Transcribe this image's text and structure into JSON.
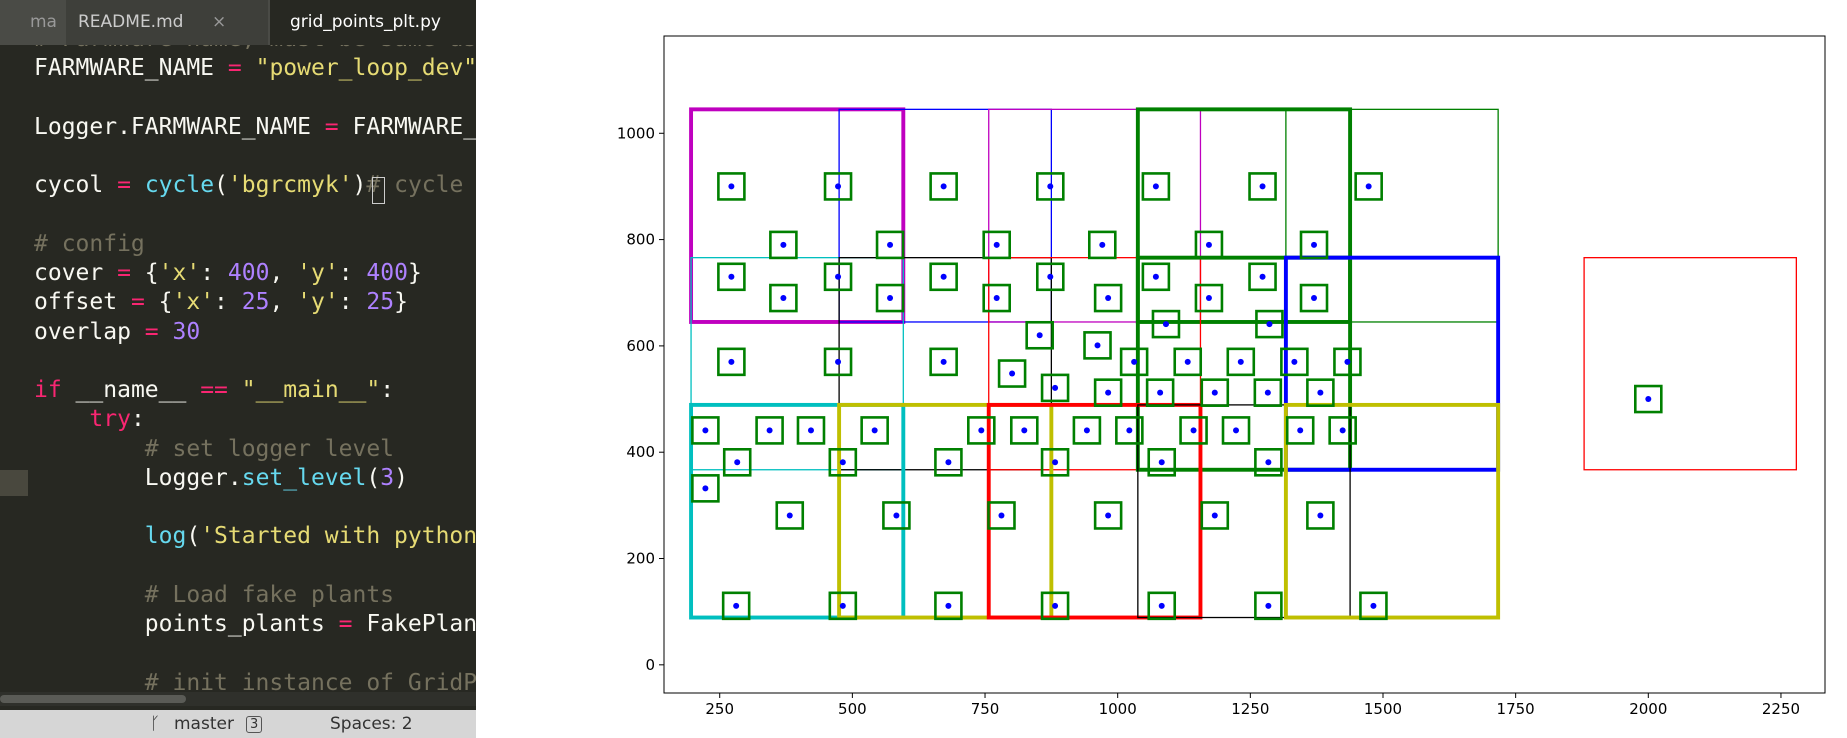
{
  "tabs": [
    {
      "label": "ma"
    },
    {
      "label": "README.md",
      "close": "×"
    },
    {
      "label": "grid_points_plt.py"
    }
  ],
  "editor": {
    "lines": [
      {
        "tokens": [
          {
            "t": "# Farmware name, must be same as",
            "c": "#75715e"
          }
        ]
      },
      {
        "tokens": [
          {
            "t": "FARMWARE_NAME ",
            "c": "#f8f8f2"
          },
          {
            "t": "=",
            "c": "#f92672"
          },
          {
            "t": " ",
            "c": "#f8f8f2"
          },
          {
            "t": "\"power_loop_dev\"",
            "c": "#e6db74"
          }
        ]
      },
      {
        "tokens": []
      },
      {
        "tokens": [
          {
            "t": "Logger.FARMWARE_NAME ",
            "c": "#f8f8f2"
          },
          {
            "t": "=",
            "c": "#f92672"
          },
          {
            "t": " FARMWARE_NAME",
            "c": "#f8f8f2"
          }
        ]
      },
      {
        "tokens": []
      },
      {
        "tokens": [
          {
            "t": "cycol ",
            "c": "#f8f8f2"
          },
          {
            "t": "=",
            "c": "#f92672"
          },
          {
            "t": " ",
            "c": "#f8f8f2"
          },
          {
            "t": "cycle",
            "c": "#66d9ef"
          },
          {
            "t": "(",
            "c": "#f8f8f2"
          },
          {
            "t": "'bgrcmyk'",
            "c": "#e6db74"
          },
          {
            "t": ")",
            "c": "#f8f8f2"
          },
          {
            "t": "# cycle",
            "c": "#75715e"
          }
        ]
      },
      {
        "tokens": []
      },
      {
        "tokens": [
          {
            "t": "# config",
            "c": "#75715e"
          }
        ]
      },
      {
        "tokens": [
          {
            "t": "cover ",
            "c": "#f8f8f2"
          },
          {
            "t": "=",
            "c": "#f92672"
          },
          {
            "t": " {",
            "c": "#f8f8f2"
          },
          {
            "t": "'x'",
            "c": "#e6db74"
          },
          {
            "t": ": ",
            "c": "#f8f8f2"
          },
          {
            "t": "400",
            "c": "#ae81ff"
          },
          {
            "t": ", ",
            "c": "#f8f8f2"
          },
          {
            "t": "'y'",
            "c": "#e6db74"
          },
          {
            "t": ": ",
            "c": "#f8f8f2"
          },
          {
            "t": "400",
            "c": "#ae81ff"
          },
          {
            "t": "}",
            "c": "#f8f8f2"
          }
        ]
      },
      {
        "tokens": [
          {
            "t": "offset ",
            "c": "#f8f8f2"
          },
          {
            "t": "=",
            "c": "#f92672"
          },
          {
            "t": " {",
            "c": "#f8f8f2"
          },
          {
            "t": "'x'",
            "c": "#e6db74"
          },
          {
            "t": ": ",
            "c": "#f8f8f2"
          },
          {
            "t": "25",
            "c": "#ae81ff"
          },
          {
            "t": ", ",
            "c": "#f8f8f2"
          },
          {
            "t": "'y'",
            "c": "#e6db74"
          },
          {
            "t": ": ",
            "c": "#f8f8f2"
          },
          {
            "t": "25",
            "c": "#ae81ff"
          },
          {
            "t": "}",
            "c": "#f8f8f2"
          }
        ]
      },
      {
        "tokens": [
          {
            "t": "overlap ",
            "c": "#f8f8f2"
          },
          {
            "t": "=",
            "c": "#f92672"
          },
          {
            "t": " ",
            "c": "#f8f8f2"
          },
          {
            "t": "30",
            "c": "#ae81ff"
          }
        ]
      },
      {
        "tokens": []
      },
      {
        "tokens": [
          {
            "t": "if",
            "c": "#f92672"
          },
          {
            "t": " __name__ ",
            "c": "#f8f8f2"
          },
          {
            "t": "==",
            "c": "#f92672"
          },
          {
            "t": " ",
            "c": "#f8f8f2"
          },
          {
            "t": "\"__main__\"",
            "c": "#e6db74"
          },
          {
            "t": ":",
            "c": "#f8f8f2"
          }
        ]
      },
      {
        "tokens": [
          {
            "t": "    ",
            "c": "#f8f8f2"
          },
          {
            "t": "try",
            "c": "#f92672"
          },
          {
            "t": ":",
            "c": "#f8f8f2"
          }
        ]
      },
      {
        "tokens": [
          {
            "t": "        # set logger level",
            "c": "#75715e"
          }
        ]
      },
      {
        "tokens": [
          {
            "t": "        Logger.",
            "c": "#f8f8f2"
          },
          {
            "t": "set_level",
            "c": "#66d9ef"
          },
          {
            "t": "(",
            "c": "#f8f8f2"
          },
          {
            "t": "3",
            "c": "#ae81ff"
          },
          {
            "t": ")",
            "c": "#f8f8f2"
          }
        ]
      },
      {
        "tokens": []
      },
      {
        "tokens": [
          {
            "t": "        ",
            "c": "#f8f8f2"
          },
          {
            "t": "log",
            "c": "#66d9ef"
          },
          {
            "t": "(",
            "c": "#f8f8f2"
          },
          {
            "t": "'Started with python",
            "c": "#e6db74"
          }
        ]
      },
      {
        "tokens": []
      },
      {
        "tokens": [
          {
            "t": "        # Load fake plants",
            "c": "#75715e"
          }
        ]
      },
      {
        "tokens": [
          {
            "t": "        points_plants ",
            "c": "#f8f8f2"
          },
          {
            "t": "=",
            "c": "#f92672"
          },
          {
            "t": " FakePlants",
            "c": "#f8f8f2"
          }
        ]
      },
      {
        "tokens": []
      },
      {
        "tokens": [
          {
            "t": "        # init instance of GridP",
            "c": "#75715e"
          }
        ]
      }
    ]
  },
  "status": {
    "branch": "master",
    "badge": "3",
    "spaces": "Spaces: 2"
  },
  "chart_data": {
    "type": "scatter",
    "xlim": [
      145,
      2333
    ],
    "ylim": [
      -53,
      1183
    ],
    "xticks": [
      250,
      500,
      750,
      1000,
      1250,
      1500,
      1750,
      2000,
      2250
    ],
    "yticks": [
      0,
      200,
      400,
      600,
      800,
      1000
    ],
    "marker_color": "#0000ff",
    "box_color": "#008000",
    "x": [
      272,
      473,
      672,
      873,
      1072,
      1273,
      1473,
      370,
      571,
      772,
      971,
      1172,
      1370,
      272,
      473,
      672,
      873,
      1072,
      1273,
      370,
      571,
      772,
      982,
      1172,
      1370,
      1091,
      1286,
      853,
      962,
      272,
      473,
      672,
      1031,
      1132,
      1232,
      1333,
      1433,
      801,
      882,
      982,
      1080,
      1183,
      1283,
      1382,
      223,
      344,
      422,
      542,
      743,
      824,
      942,
      1022,
      1143,
      1223,
      1344,
      1424,
      283,
      482,
      681,
      882,
      1083,
      1284,
      223,
      382,
      583,
      781,
      982,
      1183,
      1382,
      281,
      482,
      681,
      882,
      1083,
      1284,
      1482,
      2000
    ],
    "y": [
      900,
      900,
      900,
      900,
      900,
      900,
      900,
      790,
      790,
      790,
      790,
      790,
      790,
      730,
      730,
      730,
      730,
      730,
      730,
      690,
      690,
      690,
      690,
      690,
      690,
      641,
      641,
      620,
      601,
      570,
      570,
      570,
      570,
      570,
      570,
      570,
      570,
      548,
      521,
      512,
      512,
      512,
      512,
      512,
      441,
      441,
      441,
      441,
      441,
      441,
      441,
      441,
      441,
      441,
      441,
      441,
      381,
      381,
      381,
      381,
      381,
      381,
      332,
      281,
      281,
      281,
      281,
      281,
      281,
      111,
      111,
      111,
      111,
      111,
      111,
      111,
      500
    ],
    "rects": [
      {
        "x": [
          196,
          596
        ],
        "y": [
          645,
          1045
        ],
        "color": "#bf00bf",
        "lw": 3
      },
      {
        "x": [
          475,
          875
        ],
        "y": [
          645,
          1045
        ],
        "color": "#0000ff",
        "lw": 1
      },
      {
        "x": [
          757,
          1156
        ],
        "y": [
          645,
          1045
        ],
        "color": "#bf00bf",
        "lw": 1
      },
      {
        "x": [
          1038,
          1438
        ],
        "y": [
          645,
          1045
        ],
        "color": "#008000",
        "lw": 3
      },
      {
        "x": [
          1317,
          1717
        ],
        "y": [
          645,
          1045
        ],
        "color": "#008000",
        "lw": 1
      },
      {
        "x": [
          196,
          596
        ],
        "y": [
          367,
          766
        ],
        "color": "#00bfbf",
        "lw": 1
      },
      {
        "x": [
          475,
          875
        ],
        "y": [
          367,
          766
        ],
        "color": "#000000",
        "lw": 1
      },
      {
        "x": [
          757,
          1156
        ],
        "y": [
          367,
          766
        ],
        "color": "#ff0000",
        "lw": 1
      },
      {
        "x": [
          1038,
          1438
        ],
        "y": [
          367,
          766
        ],
        "color": "#008000",
        "lw": 3
      },
      {
        "x": [
          1317,
          1717
        ],
        "y": [
          367,
          766
        ],
        "color": "#0000ff",
        "lw": 3
      },
      {
        "x": [
          196,
          596
        ],
        "y": [
          89,
          489
        ],
        "color": "#00bfbf",
        "lw": 3
      },
      {
        "x": [
          475,
          875
        ],
        "y": [
          89,
          489
        ],
        "color": "#bfbf00",
        "lw": 3
      },
      {
        "x": [
          757,
          1156
        ],
        "y": [
          89,
          489
        ],
        "color": "#ff0000",
        "lw": 3
      },
      {
        "x": [
          1038,
          1438
        ],
        "y": [
          89,
          489
        ],
        "color": "#000000",
        "lw": 1
      },
      {
        "x": [
          1317,
          1717
        ],
        "y": [
          89,
          489
        ],
        "color": "#bfbf00",
        "lw": 3
      },
      {
        "x": [
          1879,
          2279
        ],
        "y": [
          367,
          766
        ],
        "color": "#ff0000",
        "lw": 1
      }
    ]
  }
}
